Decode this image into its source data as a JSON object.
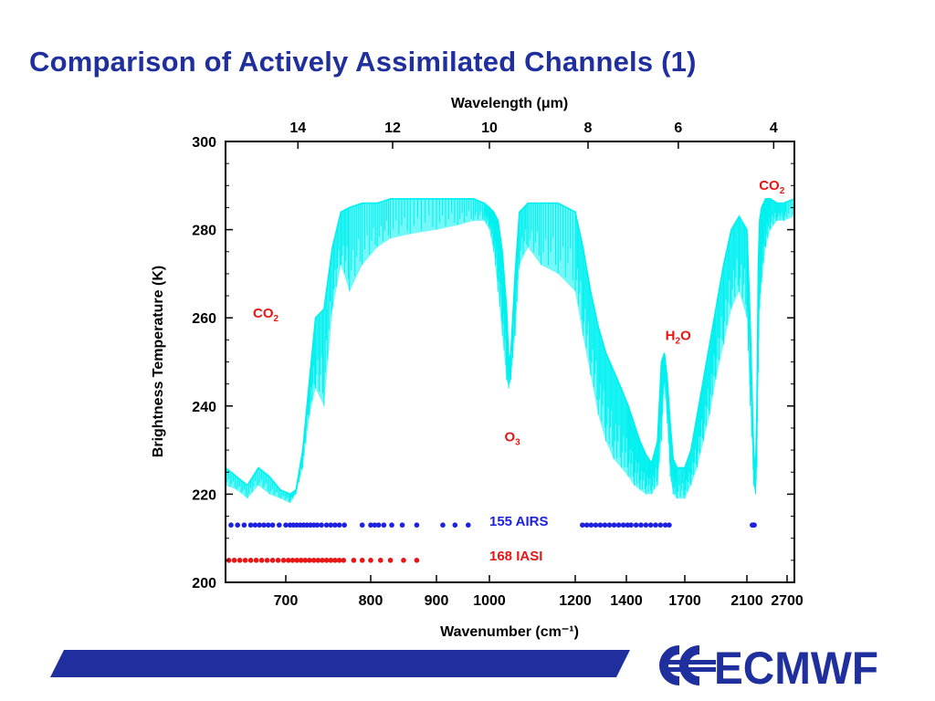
{
  "page": {
    "title": "Comparison of Actively Assimilated Channels (1)",
    "logo_text": "ECMWF",
    "brand_blue": "#1f2f9e"
  },
  "chart_data": {
    "type": "line",
    "x_top_label": "Wavelength (μm)",
    "x_top_ticks": [
      14,
      12,
      10,
      8,
      6,
      4
    ],
    "xlabel": "Wavenumber (cm⁻¹)",
    "x_ticks": [
      700,
      800,
      900,
      1000,
      1200,
      1400,
      1700,
      2100,
      2700
    ],
    "ylabel": "Brightness Temperature (K)",
    "y_ticks": [
      200,
      220,
      240,
      260,
      280,
      300
    ],
    "ylim": [
      200,
      300
    ],
    "xlim": [
      645,
      2760
    ],
    "colors": {
      "spectrum": "#00f0f0",
      "airs": "#1e22e0",
      "iasi": "#e81515",
      "annotation": "#e81515"
    },
    "spectrum": {
      "x": [
        645,
        655,
        665,
        675,
        685,
        695,
        705,
        712,
        720,
        728,
        735,
        745,
        755,
        765,
        775,
        790,
        810,
        830,
        860,
        900,
        940,
        970,
        990,
        1000,
        1010,
        1020,
        1030,
        1040,
        1045,
        1050,
        1060,
        1070,
        1090,
        1120,
        1160,
        1200,
        1230,
        1260,
        1290,
        1320,
        1350,
        1380,
        1410,
        1440,
        1470,
        1500,
        1530,
        1560,
        1580,
        1595,
        1610,
        1625,
        1640,
        1660,
        1700,
        1740,
        1780,
        1820,
        1860,
        1900,
        1950,
        2000,
        2050,
        2100,
        2150,
        2200,
        2230,
        2250,
        2270,
        2290,
        2320,
        2380,
        2450,
        2550,
        2650,
        2760
      ],
      "y": [
        226,
        224,
        222,
        226,
        224,
        221,
        220,
        221,
        230,
        246,
        260,
        262,
        276,
        284,
        285,
        286,
        286,
        287,
        287,
        287,
        287,
        287,
        286,
        285,
        284,
        282,
        275,
        262,
        250,
        252,
        270,
        284,
        286,
        286,
        286,
        284,
        276,
        266,
        258,
        252,
        248,
        244,
        240,
        236,
        232,
        229,
        227,
        232,
        250,
        252,
        246,
        236,
        228,
        226,
        226,
        230,
        238,
        246,
        254,
        262,
        272,
        280,
        283,
        280,
        258,
        230,
        225,
        240,
        272,
        282,
        285,
        287,
        287,
        286,
        286,
        287
      ],
      "y_min": [
        222,
        221,
        219,
        222,
        220,
        219,
        218,
        220,
        226,
        238,
        244,
        240,
        262,
        272,
        266,
        272,
        276,
        278,
        279,
        280,
        281,
        282,
        282,
        280,
        275,
        266,
        256,
        246,
        244,
        246,
        256,
        272,
        276,
        272,
        270,
        266,
        256,
        247,
        238,
        232,
        228,
        226,
        224,
        222,
        221,
        220,
        220,
        222,
        232,
        245,
        236,
        224,
        220,
        219,
        219,
        222,
        226,
        232,
        238,
        246,
        254,
        262,
        266,
        260,
        240,
        222,
        220,
        226,
        248,
        262,
        268,
        276,
        280,
        282,
        282,
        283
      ]
    },
    "series": [
      {
        "name": "155 AIRS",
        "y_level": 213,
        "x": [
          650,
          656,
          662,
          668,
          672,
          676,
          680,
          684,
          688,
          694,
          700,
          705,
          709,
          713,
          717,
          721,
          725,
          729,
          733,
          737,
          742,
          748,
          753,
          758,
          763,
          769,
          790,
          800,
          806,
          812,
          820,
          832,
          848,
          870,
          912,
          935,
          960,
          1228,
          1245,
          1262,
          1280,
          1298,
          1316,
          1334,
          1352,
          1370,
          1388,
          1406,
          1424,
          1450,
          1475,
          1500,
          1525,
          1550,
          1575,
          1600,
          1620,
          2180,
          2190,
          2200,
          2210
        ]
      },
      {
        "name": "168 IASI",
        "y_level": 205,
        "x": [
          648,
          653,
          658,
          663,
          668,
          673,
          678,
          683,
          688,
          693,
          698,
          703,
          708,
          713,
          718,
          723,
          728,
          733,
          738,
          743,
          748,
          753,
          758,
          763,
          768,
          780,
          790,
          800,
          815,
          830,
          850,
          870
        ]
      }
    ],
    "annotations": [
      {
        "label": "CO",
        "sub": "2",
        "x": 670,
        "y": 260
      },
      {
        "label": "O",
        "sub": "3",
        "x": 1035,
        "y": 232
      },
      {
        "label": "H",
        "sub": "2",
        "suffix": "O",
        "x": 1600,
        "y": 255
      },
      {
        "label": "CO",
        "sub": "2",
        "x": 2280,
        "y": 289
      }
    ],
    "legend": [
      "155 AIRS",
      "168 IASI"
    ],
    "legend_placement": "center-bottom"
  }
}
